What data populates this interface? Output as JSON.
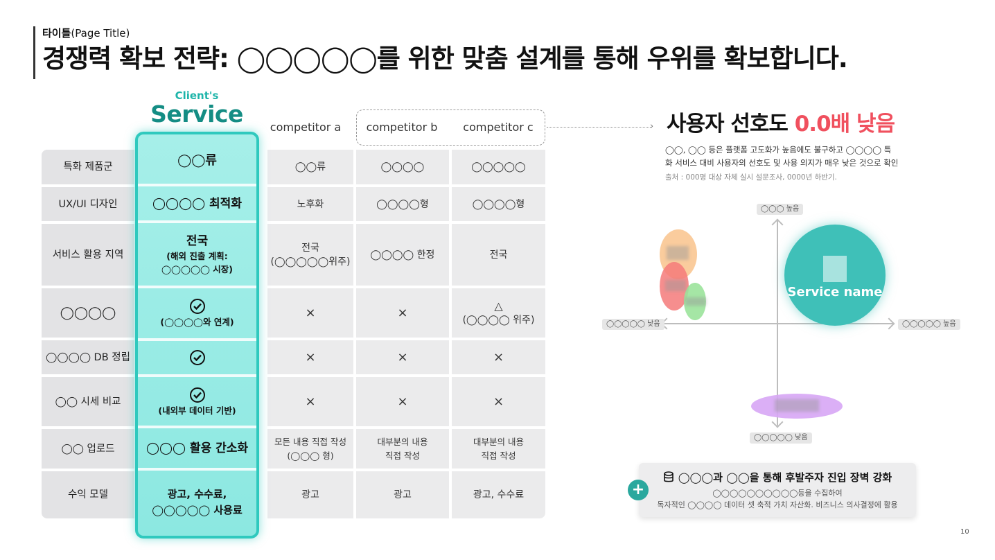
{
  "header": {
    "label_bold": "타이틀",
    "label_rest": "(Page Title)",
    "title": "경쟁력 확보 전략: ◯◯◯◯◯를 위한 맞춤 설계를 통해 우위를 확보합니다."
  },
  "columns": {
    "client_caption": "Client's",
    "client_name": "Service",
    "competitor_a": "competitor a",
    "competitor_b": "competitor b",
    "competitor_c": "competitor c"
  },
  "rows": [
    {
      "label": "특화 제품군",
      "service_main": "◯◯류",
      "service_sub": "",
      "a": "◯◯류",
      "b": "◯◯◯◯",
      "c": "◯◯◯◯◯"
    },
    {
      "label": "UX/UI 디자인",
      "service_main": "◯◯◯◯ 최적화",
      "service_sub": "",
      "a": "노후화",
      "b": "◯◯◯◯형",
      "c": "◯◯◯◯형"
    },
    {
      "label": "서비스 활용 지역",
      "service_main": "전국",
      "service_sub": "(해외 진출 계획:",
      "service_sub2": "◯◯◯◯◯ 시장)",
      "a": "전국",
      "a2": "(◯◯◯◯◯위주)",
      "b": "◯◯◯◯ 한정",
      "c": "전국"
    },
    {
      "label": "◯◯◯◯",
      "service_icon": "check-icon",
      "service_sub": "(◯◯◯◯와 연계)",
      "a": "×",
      "b": "×",
      "c_symbol": "△",
      "c": "(◯◯◯◯ 위주)"
    },
    {
      "label": "◯◯◯◯ DB 정립",
      "service_icon": "check-icon",
      "a": "×",
      "b": "×",
      "c": "×"
    },
    {
      "label": "◯◯ 시세 비교",
      "service_icon": "check-icon",
      "service_sub": "(내외부 데이터 기반)",
      "a": "×",
      "b": "×",
      "c": "×"
    },
    {
      "label": "◯◯ 업로드",
      "service_main": "◯◯◯ 활용 간소화",
      "a": "모든 내용 직접 작성",
      "a2": "(◯◯◯ 형)",
      "b": "대부분의 내용",
      "b2": "직접 작성",
      "c": "대부분의 내용",
      "c2": "직접 작성"
    },
    {
      "label": "수익 모델",
      "service_main": "광고, 수수료,",
      "service_main2": "◯◯◯◯◯ 사용료",
      "a": "광고",
      "b": "광고",
      "c": "광고, 수수료"
    }
  ],
  "preference": {
    "title_prefix": "사용자 선호도 ",
    "title_highlight": "0.0배 낮음",
    "desc_line1": "◯◯, ◯◯ 등은 플랫폼 고도화가 높음에도 불구하고 ◯◯◯◯ 특",
    "desc_line2": "화 서비스 대비 사용자의 선호도 및 사용 의지가 매우 낮은 것으로 확인",
    "source": "출처 : 000명 대상 자체 실시 설문조사, 0000년 하반기."
  },
  "chart_axes": {
    "top": "◯◯◯ 높음",
    "bottom": "◯◯◯◯◯ 낮음",
    "left": "◯◯◯◯◯ 낮음",
    "right": "◯◯◯◯◯ 높음",
    "service_name": "Service name"
  },
  "colors": {
    "accent": "#2fc9be",
    "highlight": "#f0505e",
    "bubble_orange": "#f9c38c",
    "bubble_red": "#f47a7a",
    "bubble_green": "#9be39b",
    "bubble_purple": "#d7a6f5"
  },
  "note": {
    "icon": "database-icon",
    "title": "◯◯◯과 ◯◯을 통해 후발주자 진입 장벽 강화",
    "line1": "◯◯◯◯◯◯◯◯◯◯등을 수집하여",
    "line2": "독자적인 ◯◯◯◯ 데이터 셋 축적 가치 자산화. 비즈니스 의사결정에 활용"
  },
  "page_number": "10"
}
